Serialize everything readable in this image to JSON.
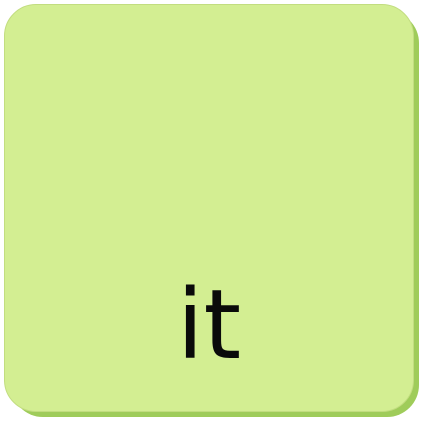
{
  "tile": {
    "word": "it",
    "colors": {
      "face": "#d3ee92",
      "edge": "#9fcc5a",
      "text": "#0a0a0a"
    }
  }
}
